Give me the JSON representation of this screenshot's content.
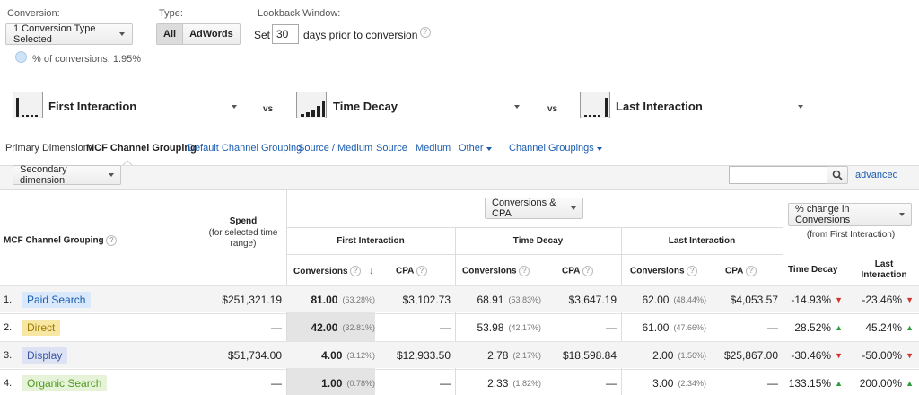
{
  "controls": {
    "conversion_label": "Conversion:",
    "conversion_value": "1 Conversion Type Selected",
    "pct_conversions": "% of conversions: 1.95%",
    "type_label": "Type:",
    "type_all": "All",
    "type_adwords": "AdWords",
    "lookback_label": "Lookback Window:",
    "lookback_set": "Set",
    "lookback_value": "30",
    "lookback_suffix": "days prior to conversion"
  },
  "models": {
    "vs": "vs",
    "first": "First Interaction",
    "second": "Time Decay",
    "third": "Last Interaction"
  },
  "dimension": {
    "primary_label": "Primary Dimension:",
    "active": "MCF Channel Grouping",
    "links": [
      "Default Channel Grouping",
      "Source / Medium",
      "Source",
      "Medium",
      "Other"
    ],
    "channel_groupings": "Channel Groupings",
    "secondary": "Secondary dimension",
    "search_placeholder": "",
    "advanced": "advanced"
  },
  "table": {
    "col_channel": "MCF Channel Grouping",
    "col_spend": "Spend",
    "col_spend_sub": "(for selected time range)",
    "metric_select": "Conversions & CPA",
    "change_select": "% change in Conversions",
    "change_sub": "(from First Interaction)",
    "group_first": "First Interaction",
    "group_time": "Time Decay",
    "group_last": "Last Interaction",
    "sub_conversions": "Conversions",
    "sub_cpa": "CPA",
    "sub_time_decay": "Time Decay",
    "sub_last_interaction": "Last Interaction",
    "rows": [
      {
        "idx": "1.",
        "name": "Paid Search",
        "chip_color": "#d9e8fb",
        "text_color": "#1a5cb0",
        "spend": "$251,321.19",
        "fi_conv": "81.00",
        "fi_pct": "(63.28%)",
        "fi_cpa": "$3,102.73",
        "td_conv": "68.91",
        "td_pct": "(53.83%)",
        "td_cpa": "$3,647.19",
        "li_conv": "62.00",
        "li_pct": "(48.44%)",
        "li_cpa": "$4,053.57",
        "ch_td": "-14.93%",
        "ch_td_dir": "down",
        "ch_li": "-23.46%",
        "ch_li_dir": "down"
      },
      {
        "idx": "2.",
        "name": "Direct",
        "chip_color": "#f7e7a3",
        "text_color": "#a07a00",
        "spend": "—",
        "fi_conv": "42.00",
        "fi_pct": "(32.81%)",
        "fi_cpa": "—",
        "td_conv": "53.98",
        "td_pct": "(42.17%)",
        "td_cpa": "—",
        "li_conv": "61.00",
        "li_pct": "(47.66%)",
        "li_cpa": "—",
        "ch_td": "28.52%",
        "ch_td_dir": "up",
        "ch_li": "45.24%",
        "ch_li_dir": "up"
      },
      {
        "idx": "3.",
        "name": "Display",
        "chip_color": "#dde3f3",
        "text_color": "#3a57a8",
        "spend": "$51,734.00",
        "fi_conv": "4.00",
        "fi_pct": "(3.12%)",
        "fi_cpa": "$12,933.50",
        "td_conv": "2.78",
        "td_pct": "(2.17%)",
        "td_cpa": "$18,598.84",
        "li_conv": "2.00",
        "li_pct": "(1.56%)",
        "li_cpa": "$25,867.00",
        "ch_td": "-30.46%",
        "ch_td_dir": "down",
        "ch_li": "-50.00%",
        "ch_li_dir": "down"
      },
      {
        "idx": "4.",
        "name": "Organic Search",
        "chip_color": "#e6f3d9",
        "text_color": "#4d9a1e",
        "spend": "—",
        "fi_conv": "1.00",
        "fi_pct": "(0.78%)",
        "fi_cpa": "—",
        "td_conv": "2.33",
        "td_pct": "(1.82%)",
        "td_cpa": "—",
        "li_conv": "3.00",
        "li_pct": "(2.34%)",
        "li_cpa": "—",
        "ch_td": "133.15%",
        "ch_td_dir": "up",
        "ch_li": "200.00%",
        "ch_li_dir": "up"
      }
    ]
  }
}
